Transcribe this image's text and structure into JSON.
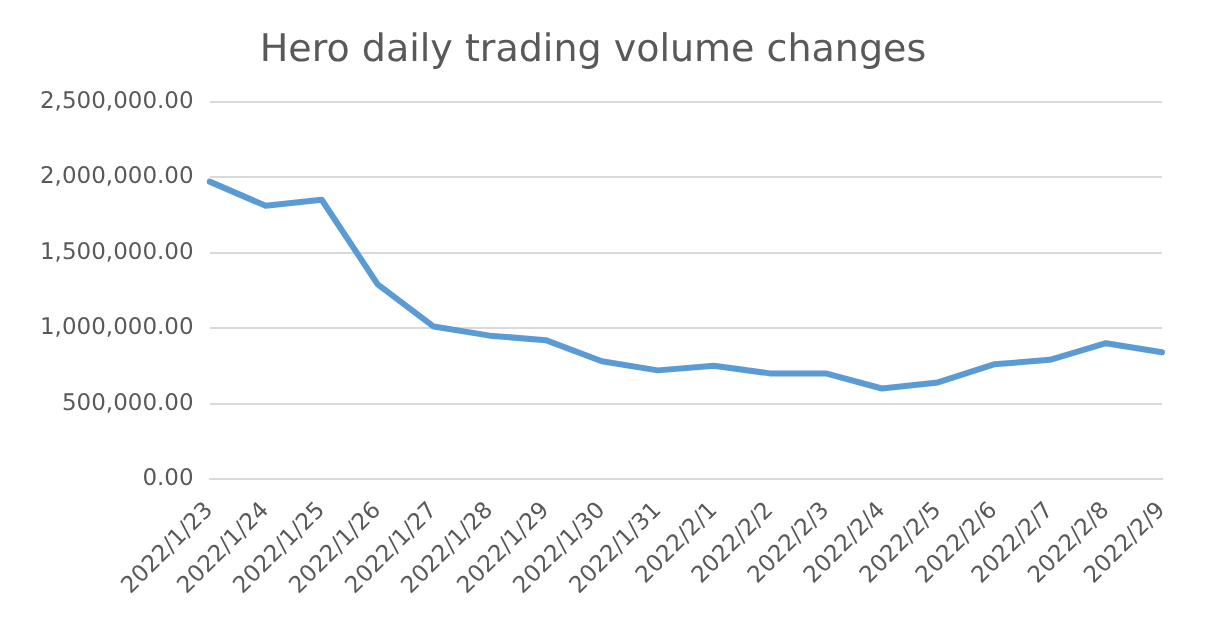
{
  "chart_data": {
    "type": "line",
    "title": "Hero daily trading volume changes",
    "categories": [
      "2022/1/23",
      "2022/1/24",
      "2022/1/25",
      "2022/1/26",
      "2022/1/27",
      "2022/1/28",
      "2022/1/29",
      "2022/1/30",
      "2022/1/31",
      "2022/2/1",
      "2022/2/2",
      "2022/2/3",
      "2022/2/4",
      "2022/2/5",
      "2022/2/6",
      "2022/2/7",
      "2022/2/8",
      "2022/2/9"
    ],
    "series": [
      {
        "color": "#5b9bd5",
        "values": [
          1970000,
          1810000,
          1850000,
          1290000,
          1010000,
          950000,
          920000,
          780000,
          720000,
          750000,
          700000,
          700000,
          600000,
          640000,
          760000,
          790000,
          900000,
          840000
        ]
      }
    ],
    "ylim": [
      0,
      2500000
    ],
    "yticks": [
      {
        "value": 0,
        "label": "0.00"
      },
      {
        "value": 500000,
        "label": "500,000.00"
      },
      {
        "value": 1000000,
        "label": "1,000,000.00"
      },
      {
        "value": 1500000,
        "label": "1,500,000.00"
      },
      {
        "value": 2000000,
        "label": "2,000,000.00"
      },
      {
        "value": 2500000,
        "label": "2,500,000.00"
      }
    ],
    "grid": "y",
    "marker": "none",
    "line_style": "solid"
  }
}
